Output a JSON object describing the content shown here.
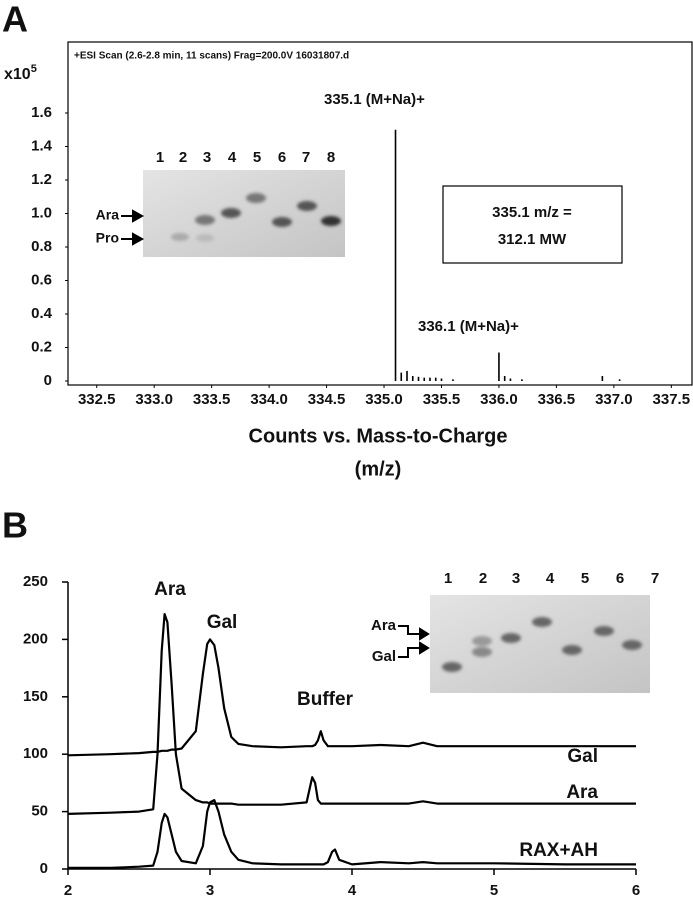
{
  "chart_data": [
    {
      "type": "stem",
      "panel_label": "A",
      "header": "+ESI Scan (2.6-2.8 min, 11 scans) Frag=200.0V 16031807.d",
      "y_unit": "x10",
      "y_unit_exponent": "5",
      "xlabel": [
        "Counts vs. Mass-to-Charge",
        "(m/z)"
      ],
      "x": [
        335.1,
        335.15,
        335.2,
        335.25,
        335.3,
        335.35,
        335.4,
        335.45,
        335.5,
        335.6,
        336.0,
        336.05,
        336.1,
        336.2,
        336.9,
        337.05
      ],
      "values": [
        1.5,
        0.05,
        0.06,
        0.03,
        0.025,
        0.02,
        0.02,
        0.02,
        0.015,
        0.01,
        0.17,
        0.03,
        0.015,
        0.01,
        0.03,
        0.01
      ],
      "color": "#000000",
      "xlim": [
        332.25,
        337.68
      ],
      "ylim": [
        0,
        2.0
      ],
      "xticks": [
        332.5,
        {
          "value": 333,
          "label": "333.0"
        },
        333.5,
        {
          "value": 334,
          "label": "334.0"
        },
        334.5,
        {
          "value": 335,
          "label": "335.0"
        },
        335.5,
        {
          "value": 336,
          "label": "336.0"
        },
        336.5,
        {
          "value": 337,
          "label": "337.0"
        },
        337.5
      ],
      "yticks": [
        0,
        0.2,
        0.4,
        0.6,
        0.8,
        {
          "value": 1,
          "label": "1.0"
        },
        1.2,
        1.4,
        1.6
      ],
      "annotations": [
        "335.1 (M+Na)+",
        "336.1 (M+Na)+"
      ],
      "callout": [
        "335.1 m/z =",
        "312.1 MW"
      ],
      "inset": {
        "lanes": [
          "1",
          "2",
          "3",
          "4",
          "5",
          "6",
          "7",
          "8"
        ],
        "markers": [
          "Ara",
          "Pro"
        ]
      }
    },
    {
      "type": "line",
      "panel_label": "B",
      "x": [
        2.0,
        2.3,
        2.5,
        2.6,
        2.63,
        2.66,
        2.68,
        2.7,
        2.73,
        2.76,
        2.8,
        2.9,
        2.95,
        2.98,
        3.0,
        3.03,
        3.06,
        3.1,
        3.15,
        3.2,
        3.3,
        3.5,
        3.68,
        3.72,
        3.74,
        3.76,
        3.78,
        3.8,
        3.83,
        3.86,
        3.88,
        3.91,
        4.0,
        4.2,
        4.4,
        4.5,
        4.6,
        5.0,
        5.5,
        6.0
      ],
      "series": [
        {
          "name": "Gal",
          "color": "#000000",
          "values": [
            99,
            100,
            101,
            102,
            102,
            103,
            103,
            103,
            104,
            104,
            105,
            120,
            170,
            196,
            200,
            195,
            175,
            140,
            115,
            109,
            107,
            106,
            107,
            107,
            108,
            112,
            120,
            112,
            107,
            107,
            107,
            107,
            107,
            108,
            107,
            110,
            107,
            107,
            107,
            107
          ]
        },
        {
          "name": "Ara",
          "color": "#000000",
          "values": [
            48,
            49,
            50,
            52,
            100,
            190,
            222,
            215,
            160,
            100,
            70,
            60,
            58,
            58,
            57,
            57,
            57,
            57,
            57,
            56,
            56,
            56,
            58,
            80,
            75,
            60,
            57,
            57,
            57,
            57,
            57,
            57,
            57,
            57,
            57,
            59,
            57,
            57,
            57,
            57
          ]
        },
        {
          "name": "RAX+AH",
          "color": "#000000",
          "values": [
            1,
            1,
            2,
            3,
            15,
            40,
            48,
            45,
            30,
            15,
            7,
            5,
            20,
            50,
            58,
            60,
            50,
            30,
            15,
            8,
            5,
            4,
            4,
            4,
            4,
            4,
            4,
            4,
            6,
            15,
            17,
            8,
            4,
            6,
            5,
            6,
            5,
            5,
            4,
            4
          ]
        }
      ],
      "xlim": [
        2,
        6
      ],
      "ylim": [
        0,
        250
      ],
      "xticks": [
        2,
        3,
        4,
        5,
        6
      ],
      "yticks": [
        0,
        50,
        100,
        150,
        200,
        250
      ],
      "annotations": [
        "Ara",
        "Gal",
        "Buffer"
      ],
      "inset": {
        "lanes": [
          "1",
          "2",
          "3",
          "4",
          "5",
          "6",
          "7"
        ],
        "markers": [
          "Ara",
          "Gal"
        ]
      }
    }
  ]
}
